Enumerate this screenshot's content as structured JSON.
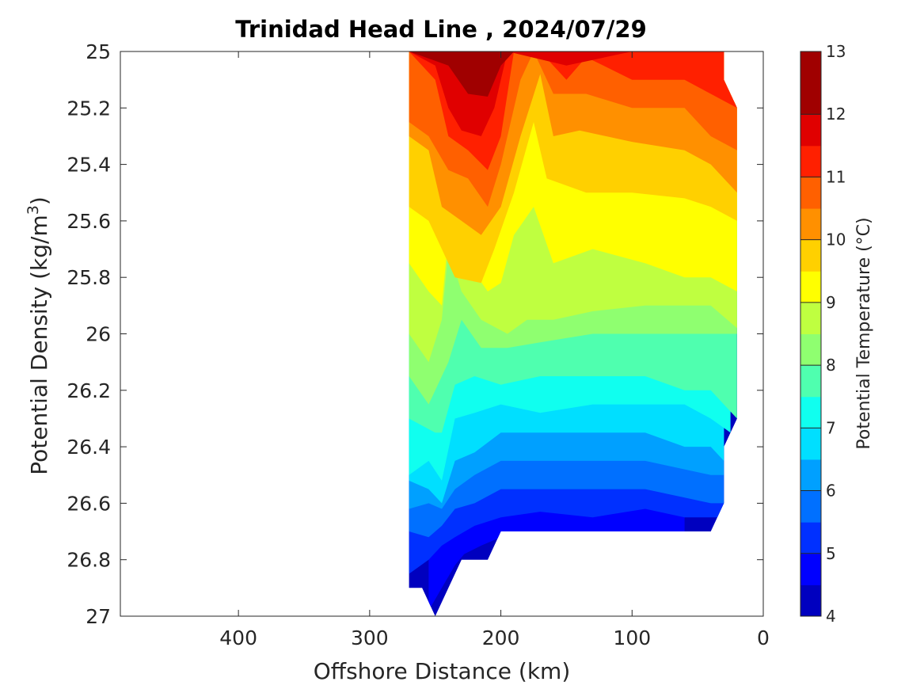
{
  "chart_data": {
    "type": "contour",
    "title": "Trinidad Head Line , 2024/07/29",
    "xlabel": "Offshore Distance (km)",
    "ylabel_main": "Potential Density (kg/m",
    "ylabel_sup": "3",
    "ylabel_close": ")",
    "xlim": [
      490,
      0
    ],
    "ylim": [
      25,
      27
    ],
    "x_reversed": true,
    "y_reversed": true,
    "grid": false,
    "x_ticks": [
      400,
      300,
      200,
      100,
      0
    ],
    "x_tick_labels": [
      "400",
      "300",
      "200",
      "100",
      "0"
    ],
    "y_ticks": [
      25,
      25.2,
      25.4,
      25.6,
      25.8,
      26,
      26.2,
      26.4,
      26.6,
      26.8,
      27
    ],
    "y_tick_labels": [
      "25",
      "25.2",
      "25.4",
      "25.6",
      "25.8",
      "26",
      "26.2",
      "26.4",
      "26.6",
      "26.8",
      "27"
    ],
    "colorbar": {
      "label": "Potential Temperature (°C)",
      "min": 4,
      "max": 13,
      "step": 0.5,
      "tick_values": [
        4,
        5,
        6,
        7,
        8,
        9,
        10,
        11,
        12,
        13
      ],
      "tick_labels": [
        "4",
        "5",
        "6",
        "7",
        "8",
        "9",
        "10",
        "11",
        "12",
        "13"
      ],
      "colors": [
        "#00008f",
        "#0000bf",
        "#0000ff",
        "#0030ff",
        "#0070ff",
        "#00a0ff",
        "#00dfff",
        "#10ffef",
        "#4fffaf",
        "#8fff70",
        "#bfff40",
        "#ffff00",
        "#ffd000",
        "#ff9000",
        "#ff6000",
        "#ff2000",
        "#e00000",
        "#a00000"
      ]
    },
    "temperature_level_depths": [
      {
        "temp": 12.5,
        "points": [
          [
            270,
            25.0
          ],
          [
            255,
            25.0
          ],
          [
            240,
            25.0
          ],
          [
            228,
            25.0
          ],
          [
            215,
            25.02
          ],
          [
            205,
            25.0
          ],
          [
            195,
            25.0
          ]
        ]
      },
      {
        "temp": 12.0,
        "points": [
          [
            270,
            25.0
          ],
          [
            240,
            25.05
          ],
          [
            225,
            25.15
          ],
          [
            210,
            25.16
          ],
          [
            200,
            25.05
          ],
          [
            190,
            25.0
          ],
          [
            60,
            25.0
          ],
          [
            30,
            25.0
          ]
        ]
      },
      {
        "temp": 11.5,
        "points": [
          [
            270,
            25.0
          ],
          [
            250,
            25.05
          ],
          [
            240,
            25.2
          ],
          [
            230,
            25.28
          ],
          [
            215,
            25.3
          ],
          [
            205,
            25.2
          ],
          [
            195,
            25.0
          ],
          [
            150,
            25.05
          ],
          [
            100,
            25.0
          ],
          [
            50,
            25.0
          ],
          [
            30,
            25.0
          ]
        ]
      },
      {
        "temp": 11.0,
        "points": [
          [
            270,
            25.0
          ],
          [
            250,
            25.1
          ],
          [
            240,
            25.3
          ],
          [
            225,
            25.35
          ],
          [
            210,
            25.42
          ],
          [
            200,
            25.3
          ],
          [
            190,
            25.0
          ],
          [
            170,
            25.0
          ],
          [
            150,
            25.1
          ],
          [
            135,
            25.02
          ],
          [
            100,
            25.1
          ],
          [
            60,
            25.1
          ],
          [
            40,
            25.15
          ],
          [
            20,
            25.2
          ]
        ]
      },
      {
        "temp": 10.5,
        "points": [
          [
            270,
            25.25
          ],
          [
            255,
            25.3
          ],
          [
            240,
            25.42
          ],
          [
            225,
            25.45
          ],
          [
            210,
            25.55
          ],
          [
            200,
            25.4
          ],
          [
            185,
            25.1
          ],
          [
            175,
            25.0
          ],
          [
            160,
            25.15
          ],
          [
            135,
            25.15
          ],
          [
            100,
            25.2
          ],
          [
            60,
            25.2
          ],
          [
            40,
            25.3
          ],
          [
            20,
            25.35
          ]
        ]
      },
      {
        "temp": 10.0,
        "points": [
          [
            270,
            25.3
          ],
          [
            255,
            25.35
          ],
          [
            245,
            25.55
          ],
          [
            230,
            25.6
          ],
          [
            215,
            25.65
          ],
          [
            200,
            25.55
          ],
          [
            185,
            25.3
          ],
          [
            170,
            25.08
          ],
          [
            160,
            25.3
          ],
          [
            140,
            25.28
          ],
          [
            100,
            25.32
          ],
          [
            60,
            25.35
          ],
          [
            40,
            25.4
          ],
          [
            20,
            25.5
          ]
        ]
      },
      {
        "temp": 9.5,
        "points": [
          [
            270,
            25.55
          ],
          [
            255,
            25.6
          ],
          [
            245,
            25.7
          ],
          [
            235,
            25.8
          ],
          [
            215,
            25.82
          ],
          [
            205,
            25.7
          ],
          [
            190,
            25.5
          ],
          [
            175,
            25.25
          ],
          [
            165,
            25.45
          ],
          [
            135,
            25.5
          ],
          [
            100,
            25.5
          ],
          [
            60,
            25.52
          ],
          [
            40,
            25.55
          ],
          [
            20,
            25.6
          ]
        ]
      },
      {
        "temp": 9.0,
        "points": [
          [
            270,
            25.75
          ],
          [
            255,
            25.85
          ],
          [
            245,
            25.9
          ],
          [
            240,
            25.65
          ],
          [
            225,
            25.75
          ],
          [
            210,
            25.85
          ],
          [
            200,
            25.82
          ],
          [
            190,
            25.65
          ],
          [
            175,
            25.55
          ],
          [
            160,
            25.75
          ],
          [
            130,
            25.7
          ],
          [
            90,
            25.75
          ],
          [
            60,
            25.8
          ],
          [
            40,
            25.8
          ],
          [
            20,
            25.85
          ]
        ]
      },
      {
        "temp": 8.5,
        "points": [
          [
            270,
            26.0
          ],
          [
            255,
            26.1
          ],
          [
            245,
            25.95
          ],
          [
            240,
            25.7
          ],
          [
            230,
            25.85
          ],
          [
            215,
            25.95
          ],
          [
            195,
            26.0
          ],
          [
            180,
            25.95
          ],
          [
            160,
            25.95
          ],
          [
            130,
            25.92
          ],
          [
            90,
            25.9
          ],
          [
            60,
            25.9
          ],
          [
            40,
            25.9
          ],
          [
            20,
            25.98
          ]
        ]
      },
      {
        "temp": 8.0,
        "points": [
          [
            270,
            26.15
          ],
          [
            255,
            26.25
          ],
          [
            240,
            26.1
          ],
          [
            230,
            25.95
          ],
          [
            215,
            26.05
          ],
          [
            195,
            26.05
          ],
          [
            170,
            26.03
          ],
          [
            130,
            26.0
          ],
          [
            90,
            26.0
          ],
          [
            60,
            26.0
          ],
          [
            40,
            26.0
          ],
          [
            20,
            26.0
          ]
        ]
      },
      {
        "temp": 7.5,
        "points": [
          [
            270,
            26.3
          ],
          [
            250,
            26.35
          ],
          [
            245,
            26.35
          ],
          [
            235,
            26.18
          ],
          [
            220,
            26.15
          ],
          [
            200,
            26.18
          ],
          [
            170,
            26.15
          ],
          [
            130,
            26.15
          ],
          [
            90,
            26.15
          ],
          [
            60,
            26.2
          ],
          [
            40,
            26.2
          ],
          [
            20,
            26.3
          ]
        ]
      },
      {
        "temp": 7.0,
        "points": [
          [
            270,
            26.5
          ],
          [
            255,
            26.45
          ],
          [
            245,
            26.52
          ],
          [
            235,
            26.3
          ],
          [
            220,
            26.28
          ],
          [
            200,
            26.25
          ],
          [
            170,
            26.28
          ],
          [
            130,
            26.25
          ],
          [
            90,
            26.25
          ],
          [
            60,
            26.25
          ],
          [
            40,
            26.3
          ],
          [
            25,
            26.35
          ]
        ]
      },
      {
        "temp": 6.5,
        "points": [
          [
            270,
            26.52
          ],
          [
            255,
            26.55
          ],
          [
            245,
            26.6
          ],
          [
            235,
            26.45
          ],
          [
            220,
            26.42
          ],
          [
            200,
            26.35
          ],
          [
            170,
            26.35
          ],
          [
            130,
            26.35
          ],
          [
            90,
            26.35
          ],
          [
            60,
            26.4
          ],
          [
            40,
            26.4
          ],
          [
            30,
            26.45
          ]
        ]
      },
      {
        "temp": 6.0,
        "points": [
          [
            270,
            26.62
          ],
          [
            255,
            26.6
          ],
          [
            245,
            26.62
          ],
          [
            235,
            26.55
          ],
          [
            220,
            26.5
          ],
          [
            200,
            26.45
          ],
          [
            170,
            26.45
          ],
          [
            130,
            26.45
          ],
          [
            90,
            26.45
          ],
          [
            60,
            26.48
          ],
          [
            40,
            26.5
          ],
          [
            30,
            26.5
          ]
        ]
      },
      {
        "temp": 5.5,
        "points": [
          [
            270,
            26.7
          ],
          [
            255,
            26.72
          ],
          [
            245,
            26.68
          ],
          [
            235,
            26.62
          ],
          [
            220,
            26.6
          ],
          [
            200,
            26.55
          ],
          [
            170,
            26.55
          ],
          [
            130,
            26.55
          ],
          [
            90,
            26.55
          ],
          [
            60,
            26.58
          ],
          [
            40,
            26.6
          ],
          [
            30,
            26.6
          ]
        ]
      },
      {
        "temp": 5.0,
        "points": [
          [
            270,
            26.85
          ],
          [
            255,
            26.8
          ],
          [
            245,
            26.75
          ],
          [
            235,
            26.72
          ],
          [
            220,
            26.68
          ],
          [
            200,
            26.65
          ],
          [
            170,
            26.63
          ],
          [
            130,
            26.65
          ],
          [
            90,
            26.62
          ],
          [
            60,
            26.65
          ],
          [
            40,
            26.65
          ],
          [
            30,
            26.65
          ]
        ]
      },
      {
        "temp": 4.5,
        "points": [
          [
            255,
            26.98
          ],
          [
            245,
            26.9
          ],
          [
            235,
            26.82
          ],
          [
            228,
            26.78
          ],
          [
            215,
            26.75
          ],
          [
            200,
            26.72
          ],
          [
            170,
            26.7
          ],
          [
            130,
            26.7
          ],
          [
            90,
            26.7
          ],
          [
            60,
            26.7
          ]
        ]
      }
    ],
    "data_boundary": {
      "description": "valid data region polygon in (distance km, density)",
      "points": [
        [
          270,
          25.0
        ],
        [
          30,
          25.0
        ],
        [
          30,
          25.1
        ],
        [
          20,
          25.2
        ],
        [
          20,
          26.3
        ],
        [
          30,
          26.4
        ],
        [
          30,
          26.6
        ],
        [
          40,
          26.7
        ],
        [
          200,
          26.7
        ],
        [
          210,
          26.8
        ],
        [
          230,
          26.8
        ],
        [
          250,
          27.0
        ],
        [
          260,
          26.9
        ],
        [
          270,
          26.9
        ]
      ]
    }
  }
}
